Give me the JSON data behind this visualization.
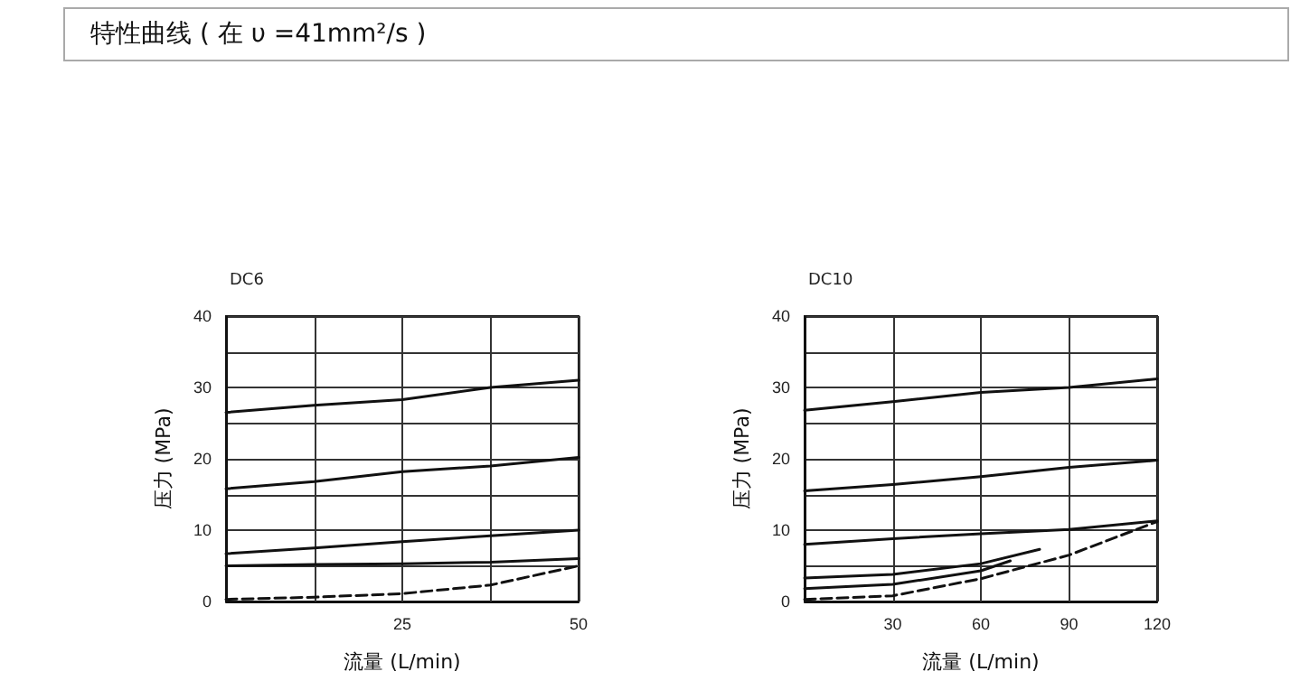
{
  "chart_data": [
    {
      "type": "line",
      "title": "DC6",
      "annotations": [
        "特性曲线 ( 在 υ =41mm²/s )"
      ],
      "xlabel": "流量 (L/min)",
      "ylabel": "压力 (MPa)",
      "xlim": [
        0,
        50
      ],
      "ylim": [
        0,
        40
      ],
      "xticks": [
        {
          "value": 0,
          "label": null
        },
        {
          "value": 12.5,
          "label": null
        },
        25,
        {
          "value": 37.5,
          "label": null
        },
        50
      ],
      "yticks": [
        0,
        {
          "value": 5,
          "label": null
        },
        10,
        {
          "value": 15,
          "label": null
        },
        20,
        {
          "value": 25,
          "label": null
        },
        30,
        {
          "value": 35,
          "label": null
        },
        40
      ],
      "grid": true,
      "marker": "none",
      "line_style": "solid",
      "series": [
        {
          "color": "#111111",
          "x": [
            0,
            12.5,
            25,
            37.5,
            50
          ],
          "values": [
            26.5,
            27.5,
            28.3,
            30,
            31
          ]
        },
        {
          "color": "#111111",
          "x": [
            0,
            12.5,
            25,
            37.5,
            50
          ],
          "values": [
            15.8,
            16.8,
            18.2,
            19,
            20.2
          ]
        },
        {
          "color": "#111111",
          "x": [
            0,
            12.5,
            25,
            37.5,
            50
          ],
          "values": [
            6.7,
            7.5,
            8.4,
            9.2,
            10
          ]
        },
        {
          "color": "#111111",
          "x": [
            0,
            12.5,
            25,
            37.5,
            50
          ],
          "values": [
            5,
            5.2,
            5.3,
            5.5,
            6
          ]
        },
        {
          "color": "#111111",
          "line_style": "dashed",
          "x": [
            0,
            12.5,
            25,
            37.5,
            50
          ],
          "values": [
            0.3,
            0.6,
            1.1,
            2.3,
            5
          ]
        }
      ]
    },
    {
      "type": "line",
      "title": "DC10",
      "xlabel": "流量 (L/min)",
      "ylabel": "压力 (MPa)",
      "xlim": [
        0,
        120
      ],
      "ylim": [
        0,
        40
      ],
      "xticks": [
        {
          "value": 0,
          "label": null
        },
        30,
        60,
        90,
        120
      ],
      "yticks": [
        0,
        {
          "value": 5,
          "label": null
        },
        10,
        {
          "value": 15,
          "label": null
        },
        20,
        {
          "value": 25,
          "label": null
        },
        30,
        {
          "value": 35,
          "label": null
        },
        40
      ],
      "grid": true,
      "marker": "none",
      "line_style": "solid",
      "series": [
        {
          "color": "#111111",
          "x": [
            0,
            30,
            60,
            90,
            120
          ],
          "values": [
            26.8,
            28,
            29.3,
            30,
            31.2
          ]
        },
        {
          "color": "#111111",
          "x": [
            0,
            30,
            60,
            90,
            120
          ],
          "values": [
            15.5,
            16.4,
            17.5,
            18.8,
            19.8
          ]
        },
        {
          "color": "#111111",
          "x": [
            0,
            30,
            60,
            90,
            120
          ],
          "values": [
            8,
            8.8,
            9.5,
            10.1,
            11.3
          ]
        },
        {
          "color": "#111111",
          "x": [
            0,
            30,
            60,
            80
          ],
          "values": [
            3.3,
            3.8,
            5.3,
            7.3
          ]
        },
        {
          "color": "#111111",
          "x": [
            0,
            30,
            60,
            70
          ],
          "values": [
            1.8,
            2.4,
            4.3,
            5.7
          ]
        },
        {
          "color": "#111111",
          "line_style": "dashed",
          "x": [
            0,
            30,
            60,
            90,
            120
          ],
          "values": [
            0.3,
            0.8,
            3.2,
            6.5,
            11.2
          ]
        }
      ]
    }
  ]
}
